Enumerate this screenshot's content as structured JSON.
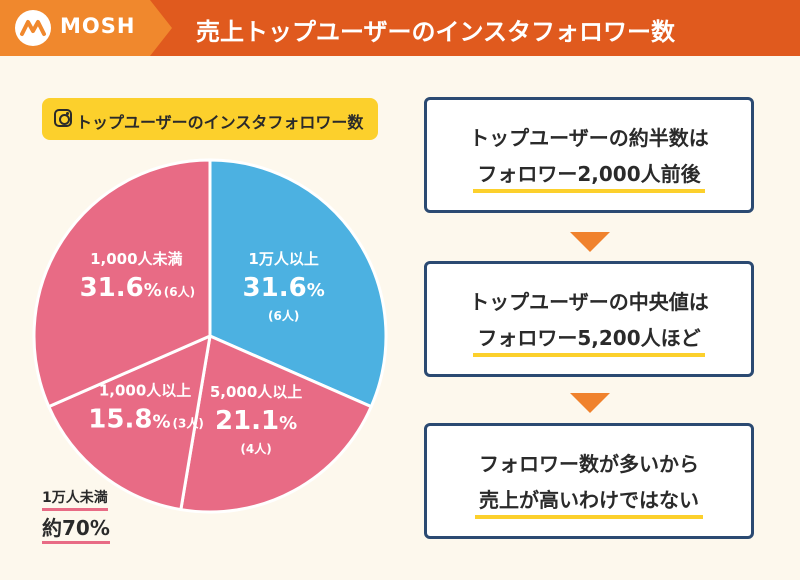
{
  "header": {
    "brand": "MOSH",
    "title": "売上トップユーザーのインスタフォロワー数"
  },
  "chart_data": {
    "type": "pie",
    "title": "トップユーザーのインスタフォロワー数",
    "slices": [
      {
        "label": "1万人以上",
        "percent": 31.6,
        "percent_text": "31.6",
        "count": "(6人)",
        "color": "#4cb1e1"
      },
      {
        "label": "5,000人以上",
        "percent": 21.1,
        "percent_text": "21.1",
        "count": "(4人)",
        "color": "#e86b85"
      },
      {
        "label": "1,000人以上",
        "percent": 15.8,
        "percent_text": "15.8",
        "count": "(3人)",
        "color": "#e86b85"
      },
      {
        "label": "1,000人未満",
        "percent": 31.6,
        "percent_text": "31.6",
        "count": "(6人)",
        "color": "#e86b85"
      }
    ],
    "percent_unit": "%",
    "start_angle_deg": 0,
    "direction": "clockwise"
  },
  "note": {
    "line1": "1万人未満",
    "line2_prefix": "約",
    "line2_value": "70",
    "line2_unit": "%"
  },
  "findings": [
    {
      "line1": "トップユーザーの約半数は",
      "line2": "フォロワー2,000人前後"
    },
    {
      "line1": "トップユーザーの中央値は",
      "line2": "フォロワー5,200人ほど"
    },
    {
      "line1": "フォロワー数が多いから",
      "line2": "売上が高いわけではない"
    }
  ],
  "colors": {
    "header_bg": "#e05a1e",
    "brand_bg": "#f0882d",
    "accent_yellow": "#fcd02c",
    "pie_blue": "#4cb1e1",
    "pie_pink": "#e86b85",
    "box_border": "#2b4a72",
    "arrow": "#f0822d",
    "page_bg": "#fdf8ed"
  }
}
